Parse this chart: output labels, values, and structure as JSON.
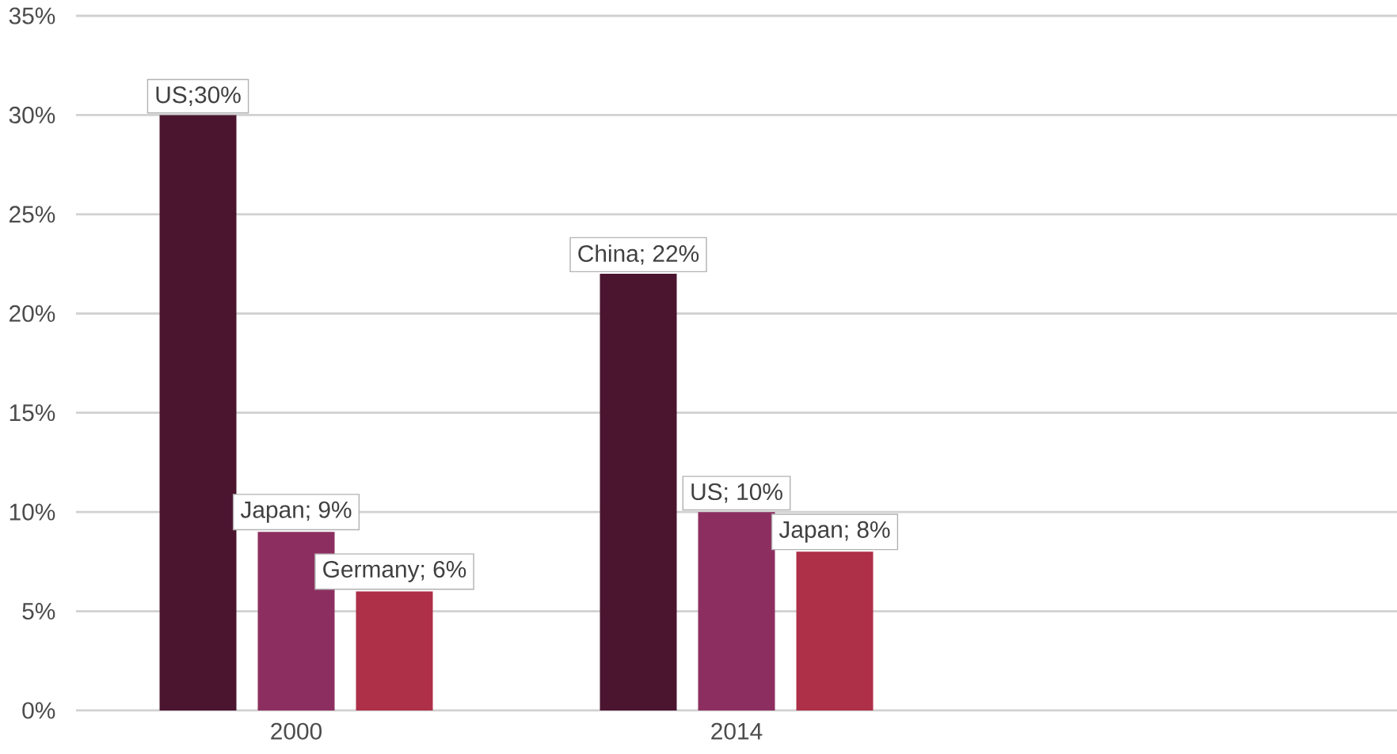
{
  "chart_data": {
    "type": "bar",
    "categories": [
      "2000",
      "2014",
      null
    ],
    "series": [
      {
        "color": "#4b1530",
        "values": [
          30,
          22,
          null
        ],
        "value_labels": [
          "US;30%",
          "China; 22%",
          null
        ]
      },
      {
        "color": "#8c2f60",
        "values": [
          9,
          10,
          null
        ],
        "value_labels": [
          "Japan; 9%",
          "US; 10%",
          null
        ]
      },
      {
        "color": "#ae2f48",
        "values": [
          6,
          8,
          null
        ],
        "value_labels": [
          "Germany; 6%",
          "Japan; 8%",
          null
        ]
      }
    ],
    "ylim": [
      0,
      35
    ],
    "yticks": [
      {
        "value": 0,
        "label": "0%"
      },
      {
        "value": 5,
        "label": "5%"
      },
      {
        "value": 10,
        "label": "10%"
      },
      {
        "value": 15,
        "label": "15%"
      },
      {
        "value": 20,
        "label": "20%"
      },
      {
        "value": 25,
        "label": "25%"
      },
      {
        "value": 30,
        "label": "30%"
      },
      {
        "value": 35,
        "label": "35%"
      }
    ],
    "grid": "y"
  }
}
